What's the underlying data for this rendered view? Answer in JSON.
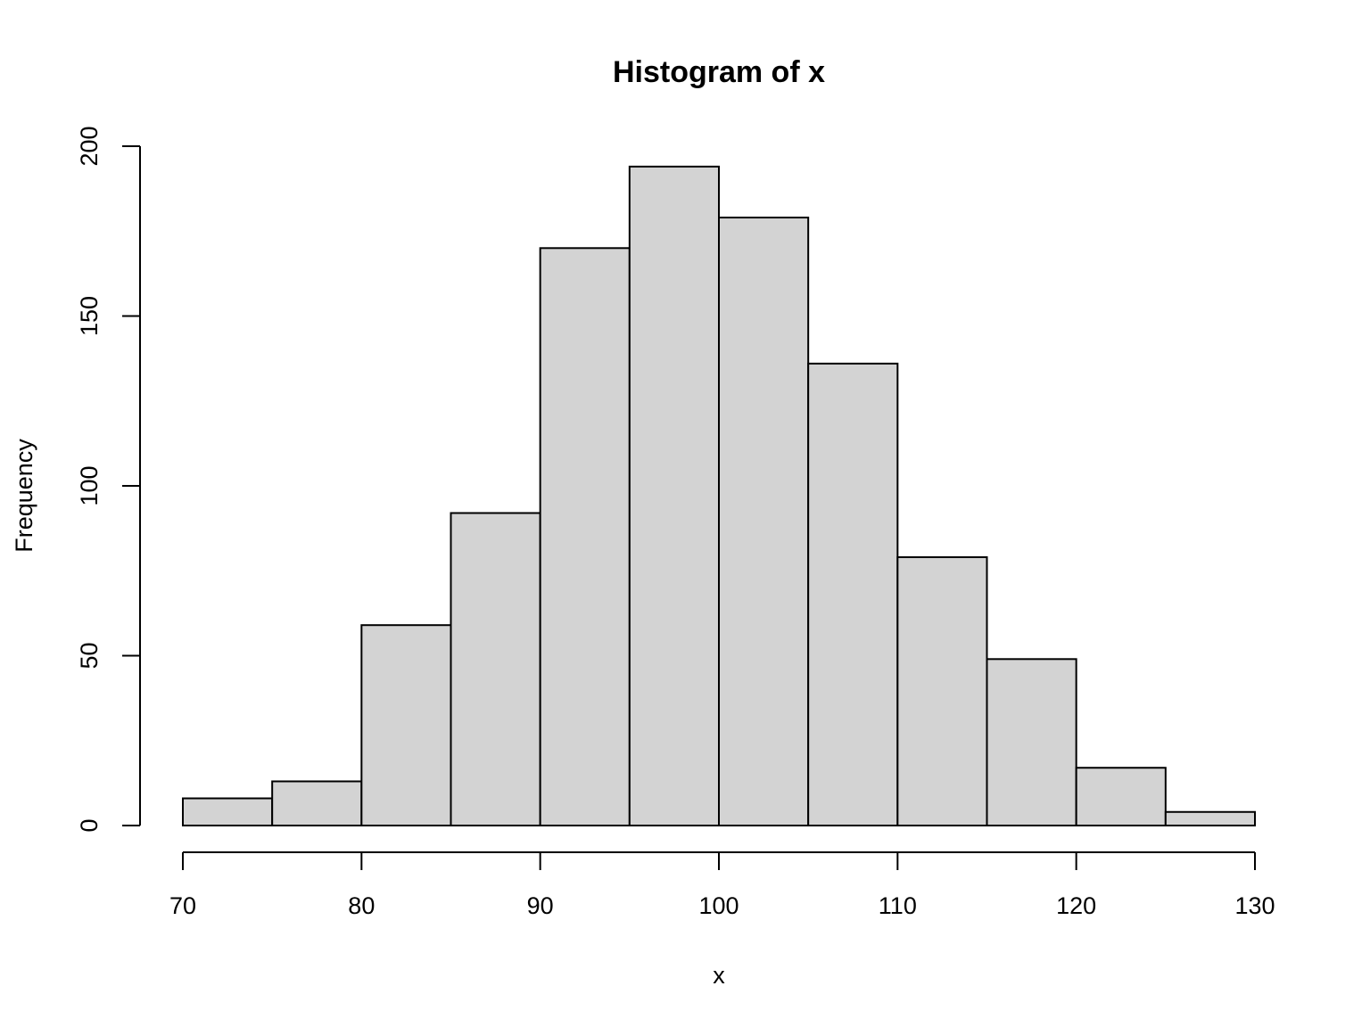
{
  "chart_data": {
    "type": "bar",
    "title": "Histogram of x",
    "xlabel": "x",
    "ylabel": "Frequency",
    "bins": [
      {
        "start": 70,
        "end": 75,
        "count": 8
      },
      {
        "start": 75,
        "end": 80,
        "count": 13
      },
      {
        "start": 80,
        "end": 85,
        "count": 59
      },
      {
        "start": 85,
        "end": 90,
        "count": 92
      },
      {
        "start": 90,
        "end": 95,
        "count": 170
      },
      {
        "start": 95,
        "end": 100,
        "count": 194
      },
      {
        "start": 100,
        "end": 105,
        "count": 179
      },
      {
        "start": 105,
        "end": 110,
        "count": 136
      },
      {
        "start": 110,
        "end": 115,
        "count": 79
      },
      {
        "start": 115,
        "end": 120,
        "count": 49
      },
      {
        "start": 120,
        "end": 125,
        "count": 17
      },
      {
        "start": 125,
        "end": 130,
        "count": 4
      }
    ],
    "xlim": [
      70,
      130
    ],
    "ylim": [
      0,
      200
    ],
    "x_ticks": [
      70,
      80,
      90,
      100,
      110,
      120,
      130
    ],
    "y_ticks": [
      0,
      50,
      100,
      150,
      200
    ],
    "bar_color": "#d3d3d3",
    "border_color": "#000000",
    "grid": false,
    "legend": "none"
  }
}
